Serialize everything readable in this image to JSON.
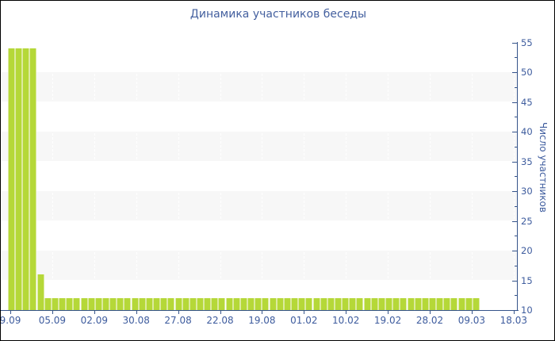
{
  "chart_data": {
    "type": "bar",
    "title": "Динамика участников беседы",
    "xlabel": "",
    "ylabel": "Число участников",
    "ylim": [
      10,
      55
    ],
    "y_axis_side": "right",
    "grid": "horizontal-bands-with-white-dashed-vertical-lines",
    "legend": "none",
    "y_ticks": [
      10,
      15,
      20,
      25,
      30,
      35,
      40,
      45,
      50,
      55
    ],
    "y_minor_ticks": [
      12.5,
      17.5,
      22.5,
      27.5,
      32.5,
      37.5,
      42.5,
      47.5,
      52.5
    ],
    "gray_bands": [
      [
        45,
        50
      ],
      [
        35,
        40
      ],
      [
        25,
        30
      ],
      [
        15,
        20
      ]
    ],
    "x_tick_labels": [
      "9.09",
      "05.09",
      "02.09",
      "30.08",
      "27.08",
      "22.08",
      "19.08",
      "01.02",
      "10.02",
      "19.02",
      "28.02",
      "09.03",
      "18.03"
    ],
    "values": [
      54,
      54,
      54,
      54,
      16,
      12,
      12,
      12,
      12,
      12,
      12,
      12,
      12,
      12,
      12,
      12,
      12,
      12,
      12,
      12,
      12,
      12,
      12,
      12,
      12,
      12,
      12,
      12,
      12,
      12,
      12,
      12,
      12,
      12,
      12,
      12,
      12,
      12,
      12,
      12,
      12,
      12,
      12,
      12,
      12,
      12,
      12,
      12,
      12,
      12,
      12,
      12,
      12,
      12,
      12,
      12,
      12,
      12,
      12,
      12,
      12,
      12,
      12,
      12,
      12
    ],
    "colors": {
      "bar_fill": "#b5d838",
      "bar_edge": "#dcea9f",
      "band_gray": "#f7f7f7",
      "axis": "#35538a",
      "text": "#3e5c9e",
      "title_text": "#44609f",
      "frame_border": "#000000",
      "background": "#ffffff"
    }
  }
}
